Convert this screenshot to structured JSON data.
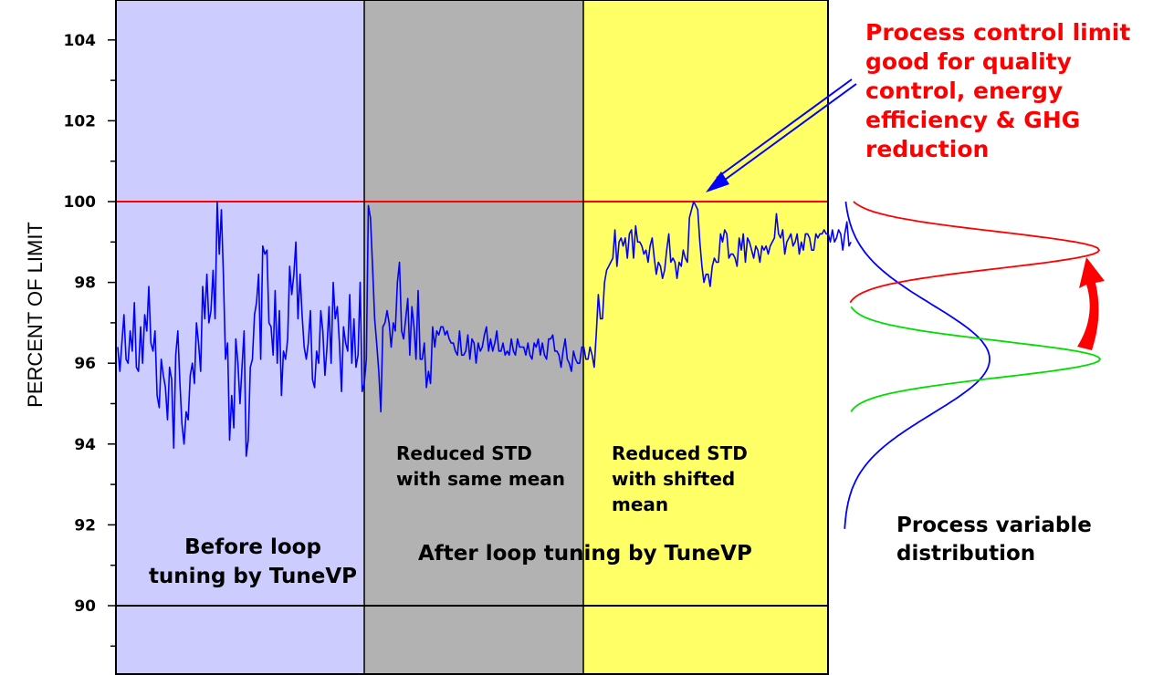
{
  "chart_data": {
    "type": "line",
    "ylabel": "PERCENT OF LIMIT",
    "ylim": [
      88.3,
      105
    ],
    "yticks": [
      90,
      92,
      94,
      96,
      98,
      100,
      102,
      104
    ],
    "grid": false,
    "limit_line": 100,
    "baseline_line": 90,
    "region_boundaries": [
      0,
      120,
      225,
      343
    ],
    "region_colors": [
      "#ccccff",
      "#b2b2b2",
      "#ffff66"
    ],
    "series": [
      {
        "color": "#0000ff",
        "x_count": 343,
        "values": [
          96.4,
          95.8,
          96.5,
          97.2,
          96.1,
          96.0,
          96.8,
          96.3,
          97.5,
          95.9,
          95.8,
          96.9,
          96.0,
          97.2,
          96.8,
          97.9,
          96.5,
          96.3,
          96.8,
          95.2,
          94.9,
          96.1,
          95.7,
          95.4,
          94.6,
          95.9,
          95.6,
          93.9,
          96.2,
          96.8,
          95.5,
          94.5,
          94.0,
          94.8,
          94.6,
          95.7,
          96.0,
          95.5,
          97.0,
          96.5,
          95.8,
          97.9,
          97.1,
          98.2,
          97.0,
          97.3,
          98.3,
          97.1,
          100.0,
          98.7,
          99.8,
          98.2,
          96.1,
          96.5,
          94.1,
          95.2,
          94.4,
          96.6,
          96.0,
          95.0,
          95.9,
          96.8,
          93.7,
          94.1,
          95.9,
          96.1,
          97.2,
          97.5,
          98.2,
          96.1,
          98.9,
          98.7,
          98.8,
          97.0,
          96.9,
          96.2,
          97.8,
          96.0,
          97.3,
          95.2,
          96.3,
          96.1,
          96.6,
          98.4,
          97.7,
          98.2,
          99.0,
          97.1,
          98.2,
          97.2,
          96.4,
          96.1,
          96.5,
          97.3,
          95.6,
          95.4,
          96.3,
          96.0,
          97.3,
          96.8,
          95.7,
          96.4,
          97.4,
          96.0,
          98.0,
          97.1,
          97.4,
          96.5,
          95.3,
          96.9,
          96.5,
          96.3,
          97.7,
          96.0,
          97.1,
          95.9,
          96.2,
          98.0,
          95.3,
          95.5,
          96.1,
          99.9,
          99.6,
          98.4,
          97.1,
          96.5,
          95.8,
          94.8,
          96.9,
          97.0,
          97.3,
          97.0,
          96.4,
          97.0,
          96.8,
          98.0,
          98.5,
          96.8,
          96.6,
          97.1,
          97.6,
          96.2,
          97.4,
          96.9,
          96.1,
          97.8,
          96.1,
          96.1,
          96.5,
          95.4,
          95.8,
          95.5,
          96.9,
          96.4,
          96.8,
          96.7,
          96.9,
          96.9,
          96.7,
          96.8,
          96.6,
          96.5,
          96.5,
          96.3,
          96.2,
          96.8,
          96.2,
          96.2,
          96.3,
          96.7,
          96.1,
          96.6,
          96.5,
          96.0,
          96.5,
          96.3,
          96.4,
          96.7,
          96.9,
          96.3,
          96.6,
          96.3,
          96.5,
          96.8,
          96.3,
          96.3,
          96.5,
          96.2,
          96.3,
          96.2,
          96.6,
          96.3,
          96.2,
          96.6,
          96.4,
          96.4,
          96.4,
          96.2,
          96.5,
          96.2,
          96.1,
          96.5,
          96.4,
          96.6,
          96.2,
          96.5,
          96.2,
          96.1,
          96.6,
          96.6,
          96.7,
          96.3,
          96.3,
          96.2,
          95.9,
          96.3,
          96.6,
          96.1,
          96.0,
          95.8,
          96.3,
          96.1,
          96.0,
          96.0,
          96.4,
          96.4,
          96.1,
          96.1,
          96.4,
          96.2,
          95.9,
          96.7,
          97.7,
          97.1,
          97.1,
          98.0,
          98.3,
          98.4,
          98.5,
          98.6,
          99.3,
          98.4,
          99.0,
          99.1,
          98.9,
          99.1,
          98.6,
          99.2,
          99.3,
          98.6,
          99.4,
          99.0,
          99.0,
          98.9,
          98.7,
          98.8,
          98.5,
          98.9,
          99.1,
          98.6,
          98.2,
          98.5,
          98.4,
          98.1,
          98.3,
          98.8,
          99.2,
          98.5,
          98.6,
          98.5,
          98.1,
          98.5,
          98.4,
          98.8,
          98.6,
          98.5,
          99.6,
          99.8,
          100.0,
          99.9,
          99.8,
          99.0,
          98.4,
          98.0,
          98.2,
          98.2,
          97.9,
          98.4,
          98.6,
          98.5,
          98.5,
          99.2,
          99.0,
          99.3,
          99.2,
          98.6,
          98.7,
          98.7,
          98.6,
          98.4,
          99.1,
          98.8,
          99.2,
          98.5,
          99.1,
          99.0,
          98.8,
          98.6,
          98.9,
          98.8,
          98.5,
          98.9,
          98.8,
          98.9,
          98.7,
          98.9,
          99.0,
          99.1,
          99.7,
          99.2,
          99.1,
          99.3,
          98.7,
          99.0,
          99.1,
          99.2,
          98.9,
          99.0,
          99.2,
          98.7,
          99.0,
          98.8,
          99.2,
          99.2,
          99.1,
          98.8,
          98.8,
          99.2,
          99.1,
          99.2,
          99.2,
          99.3,
          99.2,
          99.2,
          99.0,
          99.3,
          99.0,
          99.1,
          99.3,
          99.2,
          98.8,
          99.2,
          99.5,
          98.9,
          99.0
        ]
      }
    ],
    "distributions": [
      {
        "color": "#0000ff",
        "mean": 96.1,
        "std": 1.35
      },
      {
        "color": "#00dd00",
        "mean": 96.1,
        "std": 0.45
      },
      {
        "color": "#ff0000",
        "mean": 98.8,
        "std": 0.45
      }
    ]
  },
  "annotations": {
    "limit_note": "Process control limit\ngood for quality\ncontrol, energy\nefficiency & GHG\nreduction",
    "before_label": "Before loop\ntuning by TuneVP",
    "after_label": "After loop tuning by TuneVP",
    "same_mean_label": "Reduced STD\nwith same mean",
    "shifted_mean_label": "Reduced STD\nwith shifted\nmean",
    "distribution_label": "Process variable\ndistribution"
  },
  "colors": {
    "limit_line": "#ff0000",
    "pv_line": "#0000ff",
    "arrow_blue": "#0000ff",
    "arrow_red": "#ff0000",
    "note_text": "#ff0000"
  }
}
